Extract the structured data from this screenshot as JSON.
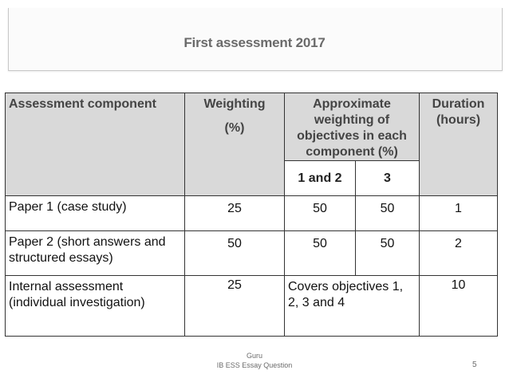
{
  "slide": {
    "title": "First assessment 2017",
    "page_number": "5"
  },
  "table": {
    "headers": {
      "component": "Assessment component",
      "weighting_label": "Weighting",
      "weighting_unit": "(%)",
      "objectives": "Approximate weighting of objectives in each component (%)",
      "duration": "Duration (hours)",
      "sub_obj_1": "1 and 2",
      "sub_obj_2": "3"
    },
    "rows": [
      {
        "component": "Paper 1 (case study)",
        "weighting": "25",
        "obj_1_2": "50",
        "obj_3": "50",
        "duration": "1"
      },
      {
        "component": "Paper 2 (short answers and structured essays)",
        "weighting": "50",
        "obj_1_2": "50",
        "obj_3": "50",
        "duration": "2"
      },
      {
        "component": "Internal assessment (individual investigation)",
        "weighting": "25",
        "objectives_note": "Covers objectives 1, 2, 3 and 4",
        "duration": "10"
      }
    ]
  },
  "footer": {
    "line1": "Guru",
    "line2": "IB ESS Essay Question"
  }
}
